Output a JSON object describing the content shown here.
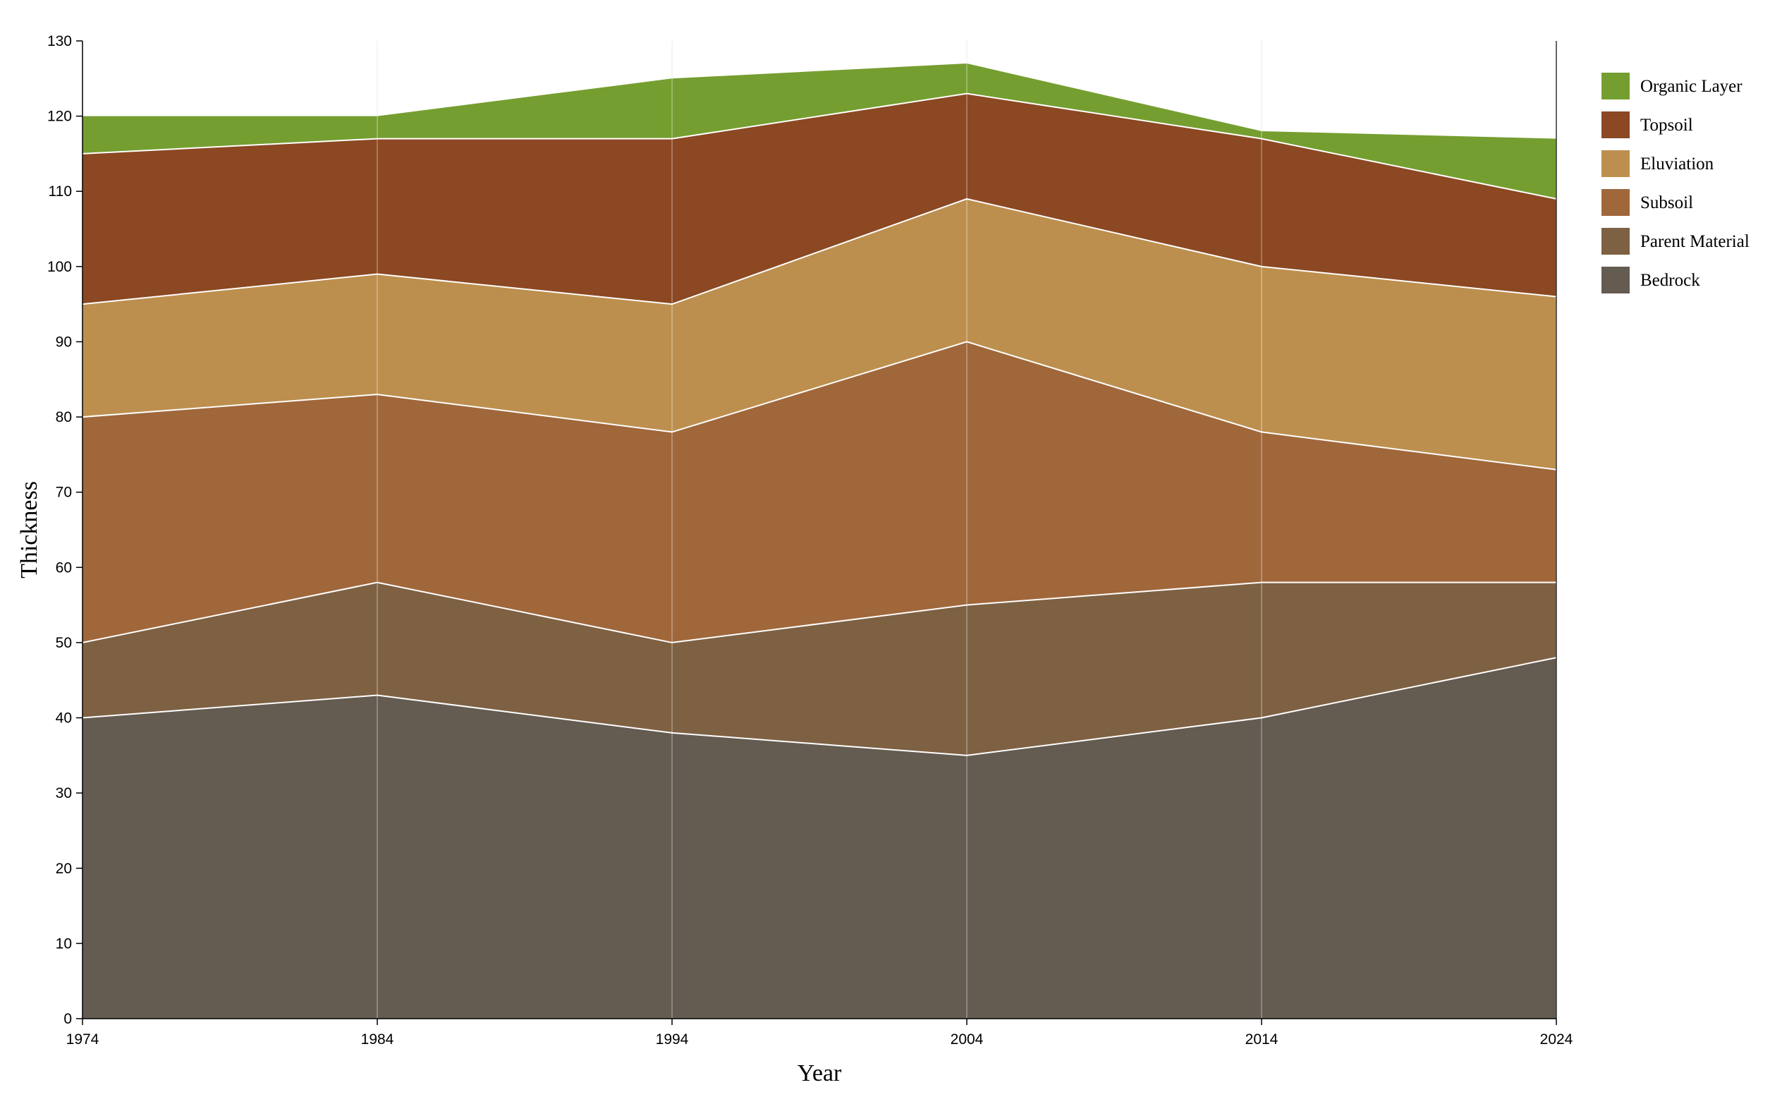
{
  "chart_data": {
    "type": "area",
    "stacked": true,
    "x": [
      1974,
      1984,
      1994,
      2004,
      2014,
      2024
    ],
    "xlabel": "Year",
    "ylabel": "Thickness",
    "xlim": [
      1974,
      2024
    ],
    "ylim": [
      0,
      130
    ],
    "x_ticks": [
      1974,
      1984,
      1994,
      2004,
      2014,
      2024
    ],
    "y_ticks": [
      0,
      10,
      20,
      30,
      40,
      50,
      60,
      70,
      80,
      90,
      100,
      110,
      120,
      130
    ],
    "grid": "vertical",
    "legend_position": "top-right",
    "series": [
      {
        "name": "Bedrock",
        "color": "#645b51",
        "values": [
          40,
          43,
          38,
          35,
          40,
          48
        ]
      },
      {
        "name": "Parent Material",
        "color": "#7e6143",
        "values": [
          10,
          15,
          12,
          20,
          18,
          10
        ]
      },
      {
        "name": "Subsoil",
        "color": "#a0673b",
        "values": [
          30,
          25,
          28,
          35,
          20,
          15
        ]
      },
      {
        "name": "Eluviation",
        "color": "#bd8f4e",
        "values": [
          15,
          16,
          17,
          19,
          22,
          23
        ]
      },
      {
        "name": "Topsoil",
        "color": "#8b4822",
        "values": [
          20,
          18,
          22,
          14,
          17,
          13
        ]
      },
      {
        "name": "Organic Layer",
        "color": "#759e30",
        "values": [
          5,
          3,
          8,
          4,
          1,
          8
        ]
      }
    ]
  }
}
